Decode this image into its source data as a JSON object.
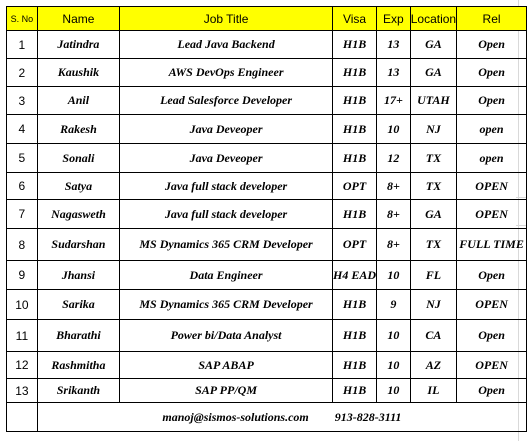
{
  "headers": {
    "sno": "S. No",
    "name": "Name",
    "job_title": "Job Title",
    "visa": "Visa",
    "exp": "Exp",
    "location": "Location",
    "rel": "Rel"
  },
  "rows": [
    {
      "sno": "1",
      "name": "Jatindra",
      "job_title": "Lead Java Backend",
      "visa": "H1B",
      "exp": "13",
      "location": "GA",
      "rel": "Open"
    },
    {
      "sno": "2",
      "name": "Kaushik",
      "job_title": "AWS DevOps Engineer",
      "visa": "H1B",
      "exp": "13",
      "location": "GA",
      "rel": "Open"
    },
    {
      "sno": "3",
      "name": "Anil",
      "job_title": "Lead Salesforce Developer",
      "visa": "H1B",
      "exp": "17+",
      "location": "UTAH",
      "rel": "Open"
    },
    {
      "sno": "4",
      "name": "Rakesh",
      "job_title": "Java Deveoper",
      "visa": "H1B",
      "exp": "10",
      "location": "NJ",
      "rel": "open"
    },
    {
      "sno": "5",
      "name": "Sonali",
      "job_title": "Java Deveoper",
      "visa": "H1B",
      "exp": "12",
      "location": "TX",
      "rel": "open"
    },
    {
      "sno": "6",
      "name": "Satya",
      "job_title": "Java full stack developer",
      "visa": "OPT",
      "exp": "8+",
      "location": "TX",
      "rel": "OPEN"
    },
    {
      "sno": "7",
      "name": "Nagasweth",
      "job_title": "Java full stack developer",
      "visa": "H1B",
      "exp": "8+",
      "location": "GA",
      "rel": "OPEN"
    },
    {
      "sno": "8",
      "name": "Sudarshan",
      "job_title": "MS Dynamics 365 CRM Developer",
      "visa": "OPT",
      "exp": "8+",
      "location": "TX",
      "rel": "FULL TIME"
    },
    {
      "sno": "9",
      "name": "Jhansi",
      "job_title": "Data Engineer",
      "visa": "H4 EAD",
      "exp": "10",
      "location": "FL",
      "rel": "Open"
    },
    {
      "sno": "10",
      "name": "Sarika",
      "job_title": "MS Dynamics 365 CRM Developer",
      "visa": "H1B",
      "exp": "9",
      "location": "NJ",
      "rel": "OPEN"
    },
    {
      "sno": "11",
      "name": "Bharathi",
      "job_title": "Power bi/Data Analyst",
      "visa": "H1B",
      "exp": "10",
      "location": "CA",
      "rel": "Open"
    },
    {
      "sno": "12",
      "name": "Rashmitha",
      "job_title": "SAP ABAP",
      "visa": "H1B",
      "exp": "10",
      "location": "AZ",
      "rel": "OPEN"
    },
    {
      "sno": "13",
      "name": "Srikanth",
      "job_title": "SAP PP/QM",
      "visa": "H1B",
      "exp": "10",
      "location": "IL",
      "rel": "Open"
    }
  ],
  "contact": {
    "email": "manoj@sismos-solutions.com",
    "phone": "913-828-3111"
  },
  "colors": {
    "header_background": "#ffff00",
    "border": "#000000",
    "gridline": "#d9d9d9"
  }
}
